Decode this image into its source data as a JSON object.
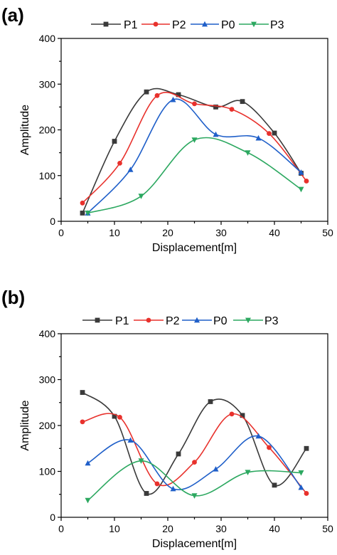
{
  "chart_data": [
    {
      "panel": "(a)",
      "type": "line",
      "xlabel": "Displacement[m]",
      "ylabel": "Amplitude",
      "xlim": [
        0,
        50
      ],
      "ylim": [
        0,
        400
      ],
      "xticks": [
        0,
        10,
        20,
        30,
        40,
        50
      ],
      "yticks": [
        0,
        100,
        200,
        300,
        400
      ],
      "legend_position": "top",
      "series": [
        {
          "name": "P1",
          "color": "#3a3a3a",
          "marker": "square",
          "x": [
            4,
            10,
            16,
            22,
            29,
            34,
            40,
            45
          ],
          "y": [
            18,
            175,
            283,
            277,
            250,
            262,
            193,
            105
          ]
        },
        {
          "name": "P2",
          "color": "#e8312c",
          "marker": "circle",
          "x": [
            4,
            11,
            18,
            25,
            32,
            39,
            46
          ],
          "y": [
            40,
            127,
            275,
            257,
            245,
            192,
            88
          ]
        },
        {
          "name": "P0",
          "color": "#1f5fc9",
          "marker": "triangle-up",
          "x": [
            5,
            13,
            21,
            29,
            37,
            45
          ],
          "y": [
            18,
            113,
            266,
            190,
            182,
            107
          ]
        },
        {
          "name": "P3",
          "color": "#2ca860",
          "marker": "triangle-down",
          "x": [
            5,
            15,
            25,
            35,
            45
          ],
          "y": [
            18,
            55,
            178,
            150,
            70
          ]
        }
      ]
    },
    {
      "panel": "(b)",
      "type": "line",
      "xlabel": "Displacement[m]",
      "ylabel": "Amplitude",
      "xlim": [
        0,
        50
      ],
      "ylim": [
        0,
        400
      ],
      "xticks": [
        0,
        10,
        20,
        30,
        40,
        50
      ],
      "yticks": [
        0,
        100,
        200,
        300,
        400
      ],
      "legend_position": "top",
      "series": [
        {
          "name": "P1",
          "color": "#3a3a3a",
          "marker": "square",
          "x": [
            4,
            10,
            16,
            22,
            28,
            34,
            40,
            46
          ],
          "y": [
            272,
            220,
            52,
            138,
            252,
            222,
            70,
            150
          ]
        },
        {
          "name": "P2",
          "color": "#e8312c",
          "marker": "circle",
          "x": [
            4,
            11,
            18,
            25,
            32,
            39,
            46
          ],
          "y": [
            208,
            218,
            73,
            120,
            225,
            152,
            52
          ]
        },
        {
          "name": "P0",
          "color": "#1f5fc9",
          "marker": "triangle-up",
          "x": [
            5,
            13,
            21,
            29,
            37,
            45
          ],
          "y": [
            118,
            168,
            62,
            105,
            177,
            65
          ]
        },
        {
          "name": "P3",
          "color": "#2ca860",
          "marker": "triangle-down",
          "x": [
            5,
            15,
            25,
            35,
            45
          ],
          "y": [
            37,
            123,
            47,
            98,
            97
          ]
        }
      ]
    }
  ]
}
